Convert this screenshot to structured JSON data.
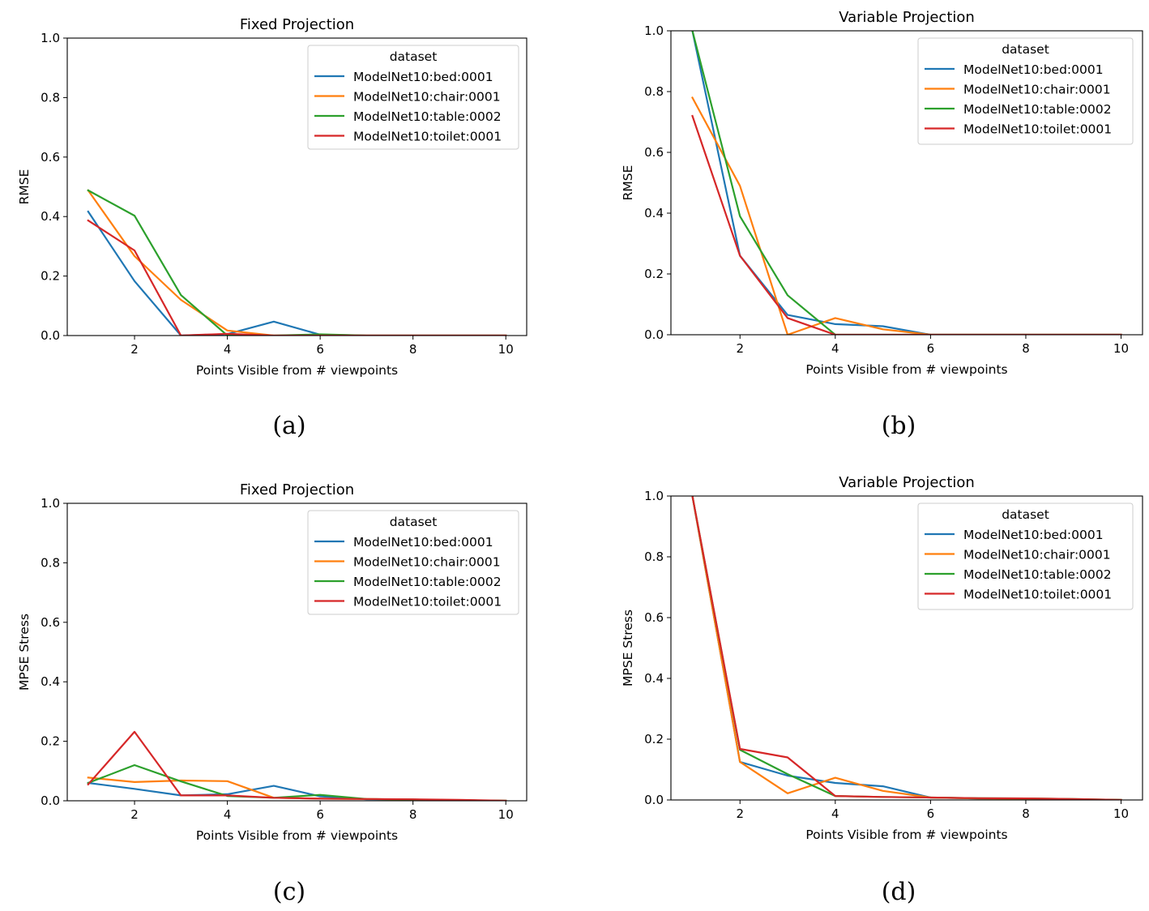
{
  "legend_title": "dataset",
  "series_names": [
    "ModelNet10:bed:0001",
    "ModelNet10:chair:0001",
    "ModelNet10:table:0002",
    "ModelNet10:toilet:0001"
  ],
  "colors": {
    "bed": "#1f77b4",
    "chair": "#ff7f0e",
    "table": "#2ca02c",
    "toilet": "#d62728"
  },
  "chart_data": [
    {
      "id": "a",
      "caption": "(a)",
      "type": "line",
      "title": "Fixed Projection",
      "xlabel": "Points Visible from # viewpoints",
      "ylabel": "RMSE",
      "xlim": [
        1,
        10
      ],
      "ylim": [
        0,
        1.0
      ],
      "xticks": [
        2,
        4,
        6,
        8,
        10
      ],
      "yticks": [
        0.0,
        0.2,
        0.4,
        0.6,
        0.8,
        1.0
      ],
      "ytick_labels": [
        "0.0",
        "0.2",
        "0.4",
        "0.6",
        "0.8",
        "1.0"
      ],
      "legend": "top-right",
      "grid": false,
      "x": [
        1,
        2,
        3,
        4,
        5,
        6,
        7,
        8,
        9,
        10
      ],
      "series": [
        {
          "name": "ModelNet10:bed:0001",
          "values": [
            0.417,
            0.183,
            0.0,
            0.005,
            0.047,
            0.003,
            0.0,
            0.0,
            0.0,
            0.0
          ]
        },
        {
          "name": "ModelNet10:chair:0001",
          "values": [
            0.488,
            0.267,
            0.12,
            0.017,
            0.0,
            0.0,
            0.0,
            0.0,
            0.0,
            0.0
          ]
        },
        {
          "name": "ModelNet10:table:0002",
          "values": [
            0.488,
            0.403,
            0.136,
            0.0,
            0.0,
            0.004,
            0.0,
            0.0,
            0.0,
            0.0
          ]
        },
        {
          "name": "ModelNet10:toilet:0001",
          "values": [
            0.387,
            0.286,
            0.0,
            0.006,
            0.0,
            0.0,
            0.0,
            0.0,
            0.0,
            0.0
          ]
        }
      ]
    },
    {
      "id": "b",
      "caption": "(b)",
      "type": "line",
      "title": "Variable Projection",
      "xlabel": "Points Visible from # viewpoints",
      "ylabel": "RMSE",
      "xlim": [
        1,
        10
      ],
      "ylim": [
        0,
        1.0
      ],
      "xticks": [
        2,
        4,
        6,
        8,
        10
      ],
      "yticks": [
        0.0,
        0.2,
        0.4,
        0.6,
        0.8,
        1.0
      ],
      "ytick_labels": [
        "0.0",
        "0.2",
        "0.4",
        "0.6",
        "0.8",
        "1.0"
      ],
      "legend": "top-right",
      "grid": false,
      "x": [
        1,
        2,
        3,
        4,
        5,
        6,
        7,
        8,
        9,
        10
      ],
      "series": [
        {
          "name": "ModelNet10:bed:0001",
          "values": [
            1.0,
            0.26,
            0.065,
            0.035,
            0.028,
            0.0,
            0.0,
            0.0,
            0.0,
            0.0
          ]
        },
        {
          "name": "ModelNet10:chair:0001",
          "values": [
            0.78,
            0.49,
            0.0,
            0.055,
            0.018,
            0.0,
            0.0,
            0.0,
            0.0,
            0.0
          ]
        },
        {
          "name": "ModelNet10:table:0002",
          "values": [
            1.0,
            0.39,
            0.13,
            0.0,
            0.0,
            0.0,
            0.0,
            0.0,
            0.0,
            0.0
          ]
        },
        {
          "name": "ModelNet10:toilet:0001",
          "values": [
            0.72,
            0.26,
            0.055,
            0.0,
            0.0,
            0.0,
            0.0,
            0.0,
            0.0,
            0.0
          ]
        }
      ]
    },
    {
      "id": "c",
      "caption": "(c)",
      "type": "line",
      "title": "Fixed Projection",
      "xlabel": "Points Visible from # viewpoints",
      "ylabel": "MPSE Stress",
      "xlim": [
        1,
        10
      ],
      "ylim": [
        0,
        1.0
      ],
      "xticks": [
        2,
        4,
        6,
        8,
        10
      ],
      "yticks": [
        0.0,
        0.2,
        0.4,
        0.6,
        0.8,
        1.0
      ],
      "ytick_labels": [
        "0.0",
        "0.2",
        "0.4",
        "0.6",
        "0.8",
        "1.0"
      ],
      "legend": "top-right",
      "grid": false,
      "x": [
        1,
        2,
        3,
        4,
        5,
        6,
        7,
        8,
        9,
        10
      ],
      "series": [
        {
          "name": "ModelNet10:bed:0001",
          "values": [
            0.06,
            0.04,
            0.018,
            0.022,
            0.05,
            0.015,
            0.005,
            0.004,
            0.002,
            0.0
          ]
        },
        {
          "name": "ModelNet10:chair:0001",
          "values": [
            0.078,
            0.063,
            0.068,
            0.066,
            0.01,
            0.007,
            0.006,
            0.004,
            0.002,
            0.0
          ]
        },
        {
          "name": "ModelNet10:table:0002",
          "values": [
            0.06,
            0.12,
            0.065,
            0.016,
            0.01,
            0.02,
            0.006,
            0.004,
            0.002,
            0.0
          ]
        },
        {
          "name": "ModelNet10:toilet:0001",
          "values": [
            0.055,
            0.232,
            0.018,
            0.018,
            0.01,
            0.007,
            0.006,
            0.005,
            0.003,
            0.0
          ]
        }
      ]
    },
    {
      "id": "d",
      "caption": "(d)",
      "type": "line",
      "title": "Variable Projection",
      "xlabel": "Points Visible from # viewpoints",
      "ylabel": "MPSE Stress",
      "xlim": [
        1,
        10
      ],
      "ylim": [
        0,
        1.0
      ],
      "xticks": [
        2,
        4,
        6,
        8,
        10
      ],
      "yticks": [
        0.0,
        0.2,
        0.4,
        0.6,
        0.8,
        1.0
      ],
      "ytick_labels": [
        "0.0",
        "0.2",
        "0.4",
        "0.6",
        "0.8",
        "1.0"
      ],
      "legend": "top-right",
      "grid": false,
      "x": [
        1,
        2,
        3,
        4,
        5,
        6,
        7,
        8,
        9,
        10
      ],
      "series": [
        {
          "name": "ModelNet10:bed:0001",
          "values": [
            1.0,
            0.125,
            0.08,
            0.056,
            0.045,
            0.008,
            0.005,
            0.004,
            0.002,
            0.0
          ]
        },
        {
          "name": "ModelNet10:chair:0001",
          "values": [
            1.0,
            0.125,
            0.022,
            0.073,
            0.03,
            0.008,
            0.005,
            0.004,
            0.002,
            0.0
          ]
        },
        {
          "name": "ModelNet10:table:0002",
          "values": [
            1.0,
            0.165,
            0.085,
            0.013,
            0.01,
            0.008,
            0.006,
            0.005,
            0.003,
            0.0
          ]
        },
        {
          "name": "ModelNet10:toilet:0001",
          "values": [
            1.0,
            0.168,
            0.14,
            0.013,
            0.01,
            0.008,
            0.006,
            0.005,
            0.003,
            0.0
          ]
        }
      ]
    }
  ]
}
